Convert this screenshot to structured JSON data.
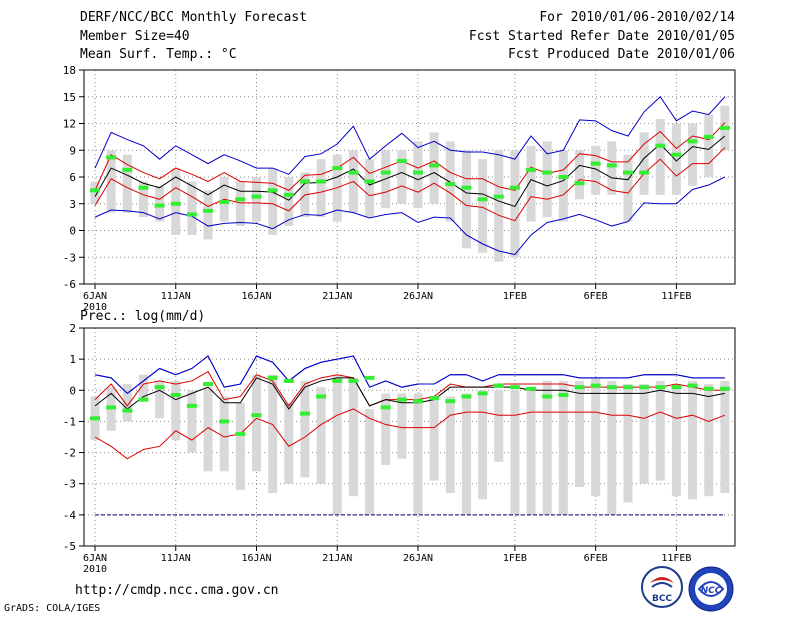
{
  "header": {
    "left": [
      "DERF/NCC/BCC Monthly Forecast",
      "Member Size=40",
      "Mean Surf. Temp.: °C"
    ],
    "right": [
      "For 2010/01/06-2010/02/14",
      "Fcst Started Refer Date 2010/01/05",
      "Fcst Produced Date 2010/01/06"
    ]
  },
  "footer": {
    "url": "http://cmdp.ncc.cma.gov.cn",
    "credit": "GrADS: COLA/IGES",
    "logo1_text": "BCC",
    "logo2_text": "NCC"
  },
  "colors": {
    "ensemble_max_min": "#0000cc",
    "ensemble_spread": "#dd0000",
    "ensemble_mean": "#000000",
    "observed": "#33ee33",
    "members_bar": "#d8d8d8",
    "threshold": "#000080"
  },
  "chart_data": [
    {
      "type": "line",
      "title": "Mean Surf. Temp.: °C",
      "xlabel": "",
      "ylabel": "°C",
      "ylim": [
        -6,
        18
      ],
      "yticks": [
        -6,
        -3,
        0,
        3,
        6,
        9,
        12,
        15,
        18
      ],
      "grid": true,
      "x_tick_labels": [
        {
          "day": 1,
          "label": "6JAN",
          "sublabel": "2010"
        },
        {
          "day": 6,
          "label": "11JAN"
        },
        {
          "day": 11,
          "label": "16JAN"
        },
        {
          "day": 16,
          "label": "21JAN"
        },
        {
          "day": 21,
          "label": "26JAN"
        },
        {
          "day": 27,
          "label": "1FEB"
        },
        {
          "day": 32,
          "label": "6FEB"
        },
        {
          "day": 37,
          "label": "11FEB"
        }
      ],
      "days": [
        1,
        2,
        3,
        4,
        5,
        6,
        7,
        8,
        9,
        10,
        11,
        12,
        13,
        14,
        15,
        16,
        17,
        18,
        19,
        20,
        21,
        22,
        23,
        24,
        25,
        26,
        27,
        28,
        29,
        30,
        31,
        32,
        33,
        34,
        35,
        36,
        37,
        38,
        39,
        40
      ],
      "series": [
        {
          "name": "max",
          "values": [
            7,
            11,
            10.2,
            9.5,
            8,
            9.5,
            8.5,
            7.5,
            8.5,
            7.8,
            7,
            7,
            6.3,
            8.3,
            8.6,
            9.7,
            11.7,
            8,
            9.5,
            10.9,
            9.3,
            10,
            9,
            8.8,
            8.8,
            8.5,
            8,
            10.6,
            8.6,
            9,
            12.4,
            12.3,
            11.2,
            10.6,
            13.3,
            15,
            12.3,
            13.4,
            13,
            15
          ]
        },
        {
          "name": "upper",
          "values": [
            4.5,
            8.5,
            7.4,
            6.5,
            5.8,
            7,
            6.3,
            5.5,
            6.5,
            5.5,
            5.4,
            5.3,
            4.5,
            6.2,
            6.3,
            7,
            8.2,
            6.4,
            7.1,
            7.8,
            7,
            7.8,
            6.5,
            5.8,
            5.8,
            4.9,
            4.5,
            7.1,
            6.4,
            6.8,
            8.6,
            8.4,
            7.7,
            7.7,
            9.7,
            11.1,
            9.2,
            10.6,
            10.2,
            12.1
          ]
        },
        {
          "name": "mean",
          "values": [
            3.8,
            7,
            6.2,
            5.3,
            4.8,
            6,
            5,
            4,
            5.1,
            4.4,
            4.4,
            4.3,
            3.4,
            5.3,
            5.4,
            6,
            6.9,
            5.1,
            5.8,
            6.5,
            5.7,
            6.5,
            5.4,
            4.2,
            4.1,
            3.3,
            2.7,
            5.7,
            5,
            5.6,
            7.3,
            6.9,
            5.9,
            5.7,
            8.1,
            9.7,
            7.8,
            9.4,
            9.1,
            10.6
          ]
        },
        {
          "name": "lower",
          "values": [
            2.8,
            5.8,
            4.8,
            4,
            3.5,
            4.8,
            3.8,
            2.7,
            3.5,
            3.1,
            3.1,
            3,
            2.2,
            4,
            4.3,
            4.8,
            5.5,
            3.9,
            4.3,
            5,
            4.3,
            5.3,
            4.2,
            2.8,
            2.6,
            1.7,
            1.1,
            3.8,
            3.5,
            4,
            5.7,
            5.5,
            4.5,
            4.2,
            6.4,
            8,
            6.1,
            7.5,
            7.5,
            9.3
          ]
        },
        {
          "name": "min",
          "values": [
            1.5,
            2.3,
            2.2,
            2,
            1.3,
            2,
            1.6,
            0.5,
            0.8,
            0.9,
            0.8,
            0.2,
            1.2,
            1.8,
            1.7,
            2.3,
            2,
            1.4,
            1.8,
            2,
            0.9,
            1.5,
            1.4,
            -0.5,
            -1.5,
            -2.3,
            -2.7,
            -0.5,
            0.9,
            1.3,
            1.8,
            1.2,
            0.5,
            1,
            3.1,
            3,
            3,
            4.6,
            5.1,
            6
          ]
        }
      ],
      "members_range": [
        [
          3,
          5.5
        ],
        [
          2,
          9
        ],
        [
          2,
          8.5
        ],
        [
          1.5,
          5.5
        ],
        [
          1,
          5
        ],
        [
          -0.5,
          7
        ],
        [
          -0.5,
          5.5
        ],
        [
          -1,
          4.5
        ],
        [
          1,
          6
        ],
        [
          0.5,
          5.5
        ],
        [
          1,
          6
        ],
        [
          -0.5,
          7
        ],
        [
          0.5,
          6
        ],
        [
          1.5,
          6.5
        ],
        [
          1.5,
          8
        ],
        [
          1,
          8.5
        ],
        [
          2,
          9
        ],
        [
          1.5,
          8
        ],
        [
          2.5,
          9
        ],
        [
          3,
          9
        ],
        [
          2.5,
          10
        ],
        [
          3,
          11
        ],
        [
          1,
          10
        ],
        [
          -2,
          9
        ],
        [
          -2.5,
          8
        ],
        [
          -3.5,
          9
        ],
        [
          -3,
          9
        ],
        [
          1,
          9.5
        ],
        [
          1.5,
          10
        ],
        [
          1,
          9
        ],
        [
          3.5,
          9
        ],
        [
          4,
          9.5
        ],
        [
          4,
          10
        ],
        [
          1,
          8.5
        ],
        [
          4,
          11
        ],
        [
          4,
          12.5
        ],
        [
          4,
          12
        ],
        [
          5,
          12
        ],
        [
          6,
          13
        ],
        [
          9,
          14
        ]
      ],
      "observed": [
        4.5,
        8.2,
        6.8,
        4.8,
        2.8,
        3,
        1.8,
        2.2,
        3.2,
        3.5,
        3.8,
        4.5,
        4,
        5.5,
        5.5,
        7,
        6.5,
        5.5,
        6.5,
        7.8,
        6.5,
        7.3,
        5.2,
        4.8,
        3.5,
        3.8,
        4.8,
        6.8,
        6.5,
        6,
        5.3,
        7.5,
        7.3,
        6.5,
        6.5,
        9.5,
        8.5,
        10,
        10.5,
        11.5
      ]
    },
    {
      "type": "line",
      "title": "Prec.: log(mm/d)",
      "xlabel": "",
      "ylabel": "log(mm/d)",
      "ylim": [
        -5,
        2
      ],
      "yticks": [
        -5,
        -4,
        -3,
        -2,
        -1,
        0,
        1,
        2
      ],
      "grid": true,
      "threshold_line": -4,
      "x_tick_labels": [
        {
          "day": 1,
          "label": "6JAN",
          "sublabel": "2010"
        },
        {
          "day": 6,
          "label": "11JAN"
        },
        {
          "day": 11,
          "label": "16JAN"
        },
        {
          "day": 16,
          "label": "21JAN"
        },
        {
          "day": 21,
          "label": "26JAN"
        },
        {
          "day": 27,
          "label": "1FEB"
        },
        {
          "day": 32,
          "label": "6FEB"
        },
        {
          "day": 37,
          "label": "11FEB"
        }
      ],
      "days": [
        1,
        2,
        3,
        4,
        5,
        6,
        7,
        8,
        9,
        10,
        11,
        12,
        13,
        14,
        15,
        16,
        17,
        18,
        19,
        20,
        21,
        22,
        23,
        24,
        25,
        26,
        27,
        28,
        29,
        30,
        31,
        32,
        33,
        34,
        35,
        36,
        37,
        38,
        39,
        40
      ],
      "series": [
        {
          "name": "max",
          "values": [
            0.5,
            0.4,
            -0.1,
            0.3,
            0.7,
            0.5,
            0.7,
            1.1,
            0.1,
            0.2,
            1.1,
            0.9,
            0.3,
            0.7,
            0.9,
            1,
            1.1,
            0.1,
            0.3,
            0.1,
            0.2,
            0.2,
            0.5,
            0.5,
            0.3,
            0.5,
            0.5,
            0.5,
            0.5,
            0.5,
            0.4,
            0.4,
            0.4,
            0.4,
            0.5,
            0.5,
            0.5,
            0.4,
            0.4,
            0.4
          ]
        },
        {
          "name": "upper",
          "values": [
            -0.3,
            0.2,
            -0.5,
            0.2,
            0.3,
            0.2,
            0.3,
            0.6,
            -0.3,
            -0.2,
            0.5,
            0.3,
            -0.5,
            0.2,
            0.4,
            0.5,
            0.4,
            -0.5,
            -0.3,
            -0.3,
            -0.3,
            -0.2,
            0.2,
            0.1,
            0.1,
            0.2,
            0.2,
            0.2,
            0.2,
            0.2,
            0.1,
            0.1,
            0.1,
            0.1,
            0.1,
            0.1,
            0.2,
            0.1,
            0,
            0
          ]
        },
        {
          "name": "mean",
          "values": [
            -0.5,
            -0.1,
            -0.6,
            -0.2,
            0,
            -0.3,
            -0.1,
            0.1,
            -0.4,
            -0.4,
            0.4,
            0.2,
            -0.6,
            0.1,
            0.3,
            0.4,
            0.4,
            -0.5,
            -0.3,
            -0.4,
            -0.4,
            -0.3,
            0.1,
            0.1,
            0.1,
            0.1,
            0.1,
            0,
            0,
            0,
            -0.1,
            -0.1,
            -0.1,
            -0.1,
            -0.1,
            0,
            -0.1,
            -0.1,
            -0.2,
            -0.1
          ]
        },
        {
          "name": "lower",
          "values": [
            -1.5,
            -1.8,
            -2.2,
            -1.9,
            -1.8,
            -1.3,
            -1.6,
            -1.2,
            -1.5,
            -1.4,
            -0.9,
            -1.1,
            -1.8,
            -1.5,
            -1.1,
            -0.8,
            -0.6,
            -0.9,
            -1.1,
            -1.2,
            -1.2,
            -1.2,
            -0.8,
            -0.7,
            -0.7,
            -0.8,
            -0.8,
            -0.7,
            -0.7,
            -0.7,
            -0.7,
            -0.7,
            -0.8,
            -0.8,
            -0.9,
            -0.7,
            -0.9,
            -0.8,
            -1,
            -0.8
          ]
        },
        {
          "name": "min",
          "values": [
            0.5,
            0.4,
            -0.1,
            0.3,
            0.7,
            0.5,
            0.7,
            1.1,
            0.1,
            0.2,
            1.1,
            0.9,
            0.3,
            0.7,
            0.9,
            1,
            1.1,
            0.1,
            0.3,
            0.1,
            0.2,
            0.2,
            0.5,
            0.5,
            0.3,
            0.5,
            0.5,
            0.5,
            0.5,
            0.5,
            0.4,
            0.4,
            0.4,
            0.4,
            0.5,
            0.5,
            0.5,
            0.4,
            0.4,
            0.4
          ]
        }
      ],
      "members_range": [
        [
          -1.6,
          -0.2
        ],
        [
          -1.3,
          0.1
        ],
        [
          -1,
          0.2
        ],
        [
          -0.3,
          0.5
        ],
        [
          -0.9,
          0.3
        ],
        [
          -1.6,
          0.3
        ],
        [
          -2,
          0
        ],
        [
          -2.6,
          0.1
        ],
        [
          -2.6,
          -0.2
        ],
        [
          -3.2,
          -0.4
        ],
        [
          -2.6,
          0.5
        ],
        [
          -3.3,
          0.5
        ],
        [
          -3,
          -0.4
        ],
        [
          -2.8,
          0.3
        ],
        [
          -3,
          0.1
        ],
        [
          -4,
          0.5
        ],
        [
          -3.4,
          0.4
        ],
        [
          -4,
          -0.6
        ],
        [
          -2.4,
          -0.1
        ],
        [
          -2.2,
          -0.1
        ],
        [
          -4,
          -0.1
        ],
        [
          -2.9,
          -0.2
        ],
        [
          -3.3,
          -0.2
        ],
        [
          -4,
          -0.1
        ],
        [
          -3.5,
          0
        ],
        [
          -2.3,
          0
        ],
        [
          -4,
          0
        ],
        [
          -4,
          0.1
        ],
        [
          -4,
          0.3
        ],
        [
          -4,
          0.3
        ],
        [
          -3.1,
          0.3
        ],
        [
          -3.4,
          0.4
        ],
        [
          -4,
          0.3
        ],
        [
          -3.6,
          0.2
        ],
        [
          -3,
          0.2
        ],
        [
          -2.9,
          0.3
        ],
        [
          -3.4,
          0.2
        ],
        [
          -3.5,
          0.3
        ],
        [
          -3.4,
          0.2
        ],
        [
          -3.3,
          0.3
        ]
      ],
      "observed": [
        -0.9,
        -0.55,
        -0.65,
        -0.3,
        0.1,
        -0.15,
        -0.5,
        0.2,
        -1,
        -1.4,
        -0.8,
        0.4,
        0.3,
        -0.75,
        -0.2,
        0.3,
        0.3,
        0.4,
        -0.55,
        -0.3,
        -0.35,
        -0.25,
        -0.35,
        -0.2,
        -0.1,
        0.15,
        0.1,
        0.05,
        -0.2,
        -0.15,
        0.1,
        0.15,
        0.1,
        0.1,
        0.1,
        0.1,
        0.1,
        0.15,
        0.05,
        0.05
      ]
    }
  ]
}
